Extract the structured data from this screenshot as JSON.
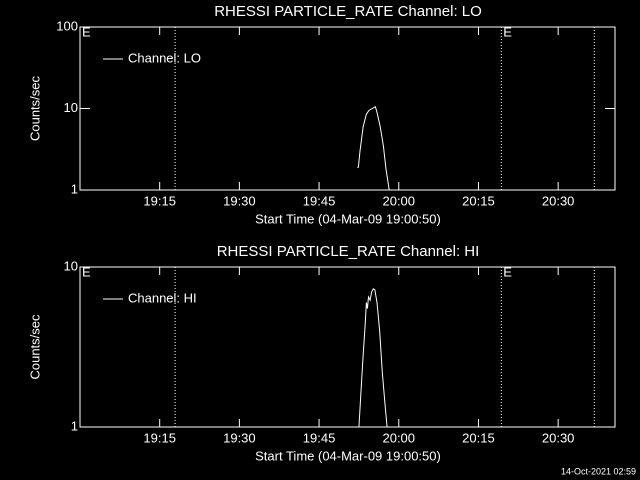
{
  "chart_data": [
    {
      "type": "line",
      "title": "RHESSI PARTICLE_RATE Channel: LO",
      "xlabel": "Start Time (04-Mar-09 19:00:50)",
      "ylabel": "Counts/sec",
      "log_y": true,
      "ylim": [
        1,
        100
      ],
      "yticks": [
        1,
        10,
        100
      ],
      "xlim": [
        0,
        100.7
      ],
      "xticks": [
        {
          "value": 15,
          "label": "19:15"
        },
        {
          "value": 30,
          "label": "19:30"
        },
        {
          "value": 45,
          "label": "19:45"
        },
        {
          "value": 60,
          "label": "20:00"
        },
        {
          "value": 75,
          "label": "20:15"
        },
        {
          "value": 90,
          "label": "20:30"
        }
      ],
      "x": [
        52.2,
        52.4,
        52.7,
        53.3,
        53.9,
        54.4,
        55.0,
        55.6,
        55.9,
        56.5,
        57.1,
        57.6,
        58.2
      ],
      "series": [
        {
          "name": "Channel: LO",
          "color": "#ffffff",
          "values": [
            1.9,
            1.9,
            3,
            6,
            8.5,
            9.5,
            10,
            10.5,
            9,
            6,
            3.5,
            1.8,
            1.0
          ]
        }
      ],
      "vlines": [
        17.9,
        79.3,
        96.8
      ],
      "annotations": [
        {
          "x": 0,
          "text": "E"
        },
        {
          "x": 79.3,
          "text": "E"
        }
      ],
      "legend": "upper left"
    },
    {
      "type": "line",
      "title": "RHESSI PARTICLE_RATE Channel: HI",
      "xlabel": "Start Time (04-Mar-09 19:00:50)",
      "ylabel": "Counts/sec",
      "log_y": true,
      "ylim": [
        1,
        10
      ],
      "yticks": [
        1,
        10
      ],
      "xlim": [
        0,
        100.7
      ],
      "xticks": [
        {
          "value": 15,
          "label": "19:15"
        },
        {
          "value": 30,
          "label": "19:30"
        },
        {
          "value": 45,
          "label": "19:45"
        },
        {
          "value": 60,
          "label": "20:00"
        },
        {
          "value": 75,
          "label": "20:15"
        },
        {
          "value": 90,
          "label": "20:30"
        }
      ],
      "x": [
        52.5,
        53.2,
        53.7,
        53.9,
        54.1,
        54.3,
        54.6,
        54.9,
        55.2,
        55.5,
        55.9,
        56.4,
        56.9,
        57.4,
        57.8
      ],
      "series": [
        {
          "name": "Channel: HI",
          "color": "#ffffff",
          "values": [
            1.0,
            2.5,
            4.5,
            6.0,
            5.5,
            6.5,
            6.2,
            7.0,
            7.3,
            7.2,
            6.0,
            4.0,
            2.2,
            1.4,
            1.0
          ]
        }
      ],
      "vlines": [
        17.9,
        79.3,
        96.8
      ],
      "annotations": [
        {
          "x": 0,
          "text": "E"
        },
        {
          "x": 79.3,
          "text": "E"
        }
      ],
      "legend": "upper left"
    }
  ],
  "footer": "14-Oct-2021 02:59"
}
